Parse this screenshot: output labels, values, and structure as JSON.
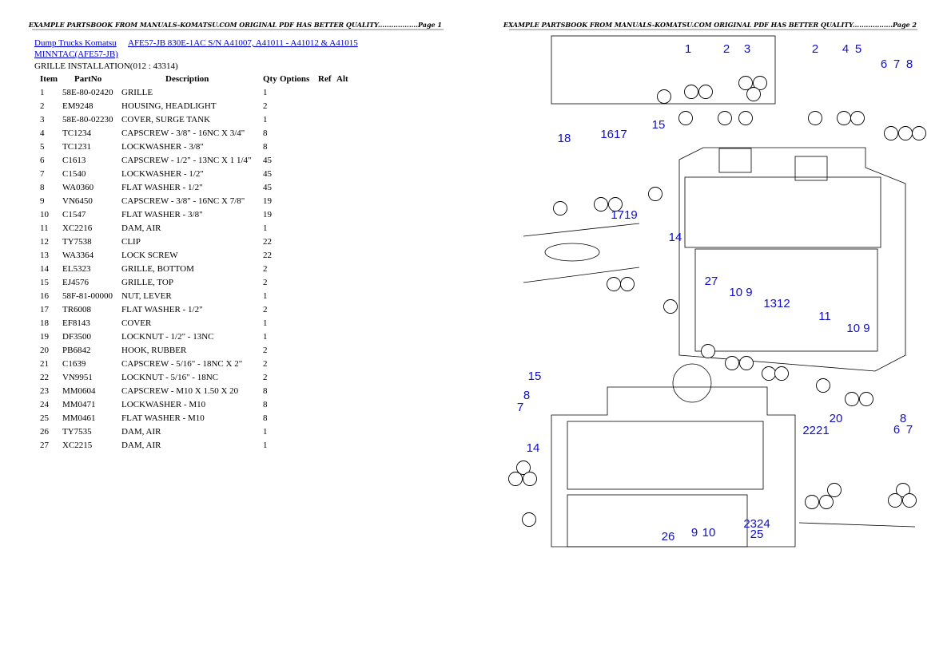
{
  "header": {
    "left": "EXAMPLE PARTSBOOK FROM MANUALS-KOMATSU.COM ORIGINAL PDF HAS BETTER QUALITY..................Page 1",
    "right": "EXAMPLE PARTSBOOK FROM MANUALS-KOMATSU.COM ORIGINAL PDF HAS BETTER QUALITY..................Page 2"
  },
  "breadcrumb": {
    "link1": "Dump Trucks Komatsu",
    "link2": "AFE57-JB 830E-1AC S/N A41007, A41011 - A41012 & A41015",
    "link3": "MINNTAC(AFE57-JB)"
  },
  "section_title": "GRILLE INSTALLATION(012 : 43314)",
  "table": {
    "columns": [
      "Item",
      "PartNo",
      "Description",
      "Qty",
      "Options",
      "Ref",
      "Alt"
    ],
    "rows": [
      [
        1,
        "58E-80-02420",
        "GRILLE",
        1
      ],
      [
        2,
        "EM9248",
        "HOUSING, HEADLIGHT",
        2
      ],
      [
        3,
        "58E-80-02230",
        "COVER, SURGE TANK",
        1
      ],
      [
        4,
        "TC1234",
        "CAPSCREW - 3/8\" - 16NC X 3/4\"",
        8
      ],
      [
        5,
        "TC1231",
        "LOCKWASHER - 3/8\"",
        8
      ],
      [
        6,
        "C1613",
        "CAPSCREW - 1/2\" - 13NC X 1 1/4\"",
        45
      ],
      [
        7,
        "C1540",
        "LOCKWASHER - 1/2\"",
        45
      ],
      [
        8,
        "WA0360",
        "FLAT WASHER - 1/2\"",
        45
      ],
      [
        9,
        "VN6450",
        "CAPSCREW - 3/8\" - 16NC X 7/8\"",
        19
      ],
      [
        10,
        "C1547",
        "FLAT WASHER - 3/8\"",
        19
      ],
      [
        11,
        "XC2216",
        "DAM, AIR",
        1
      ],
      [
        12,
        "TY7538",
        "CLIP",
        22
      ],
      [
        13,
        "WA3364",
        "LOCK SCREW",
        22
      ],
      [
        14,
        "EL5323",
        "GRILLE, BOTTOM",
        2
      ],
      [
        15,
        "EJ4576",
        "GRILLE, TOP",
        2
      ],
      [
        16,
        "58F-81-00000",
        "NUT, LEVER",
        1
      ],
      [
        17,
        "TR6008",
        "FLAT WASHER - 1/2\"",
        2
      ],
      [
        18,
        "EF8143",
        "COVER",
        1
      ],
      [
        19,
        "DF3500",
        "LOCKNUT - 1/2\" - 13NC",
        1
      ],
      [
        20,
        "PB6842",
        "HOOK, RUBBER",
        2
      ],
      [
        21,
        "C1639",
        "CAPSCREW - 5/16\" - 18NC X 2\"",
        2
      ],
      [
        22,
        "VN9951",
        "LOCKNUT - 5/16\" - 18NC",
        2
      ],
      [
        23,
        "MM0604",
        "CAPSCREW - M10 X 1.50 X 20",
        8
      ],
      [
        24,
        "MM0471",
        "LOCKWASHER - M10",
        8
      ],
      [
        25,
        "MM0461",
        "FLAT WASHER - M10",
        8
      ],
      [
        26,
        "TY7535",
        "DAM, AIR",
        1
      ],
      [
        27,
        "XC2215",
        "DAM, AIR",
        1
      ]
    ]
  },
  "diagram": {
    "callouts": [
      "1",
      "2",
      "3",
      "2",
      "4",
      "5",
      "6",
      "7",
      "8",
      "18",
      "1617",
      "15",
      "1719",
      "14",
      "27",
      "10 9",
      "1312",
      "11",
      "10 9",
      "15",
      "8",
      "7",
      "20",
      "8",
      "2221",
      "6",
      "7",
      "14",
      "2324",
      "25",
      "26",
      "9",
      "10"
    ]
  }
}
